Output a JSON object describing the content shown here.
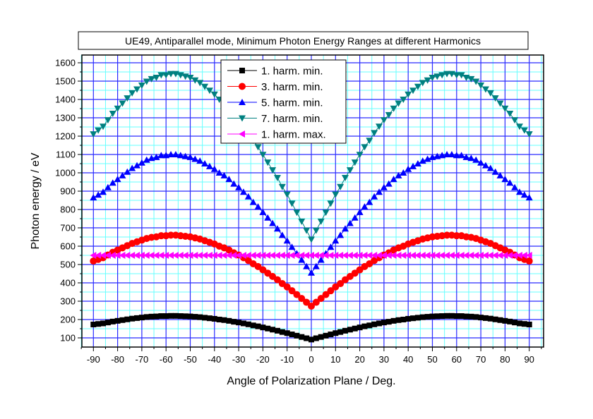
{
  "chart_data": {
    "type": "line",
    "title": "UE49, Antiparallel mode, Minimum Photon Energy Ranges at different Harmonics",
    "xlabel": "Angle of Polarization Plane / Deg.",
    "ylabel": "Photon energy / eV",
    "xlim": [
      -95,
      95
    ],
    "ylim": [
      50,
      1650
    ],
    "xticks": [
      -90,
      -80,
      -70,
      -60,
      -50,
      -40,
      -30,
      -20,
      -10,
      0,
      10,
      20,
      30,
      40,
      50,
      60,
      70,
      80,
      90
    ],
    "yticks": [
      100,
      200,
      300,
      400,
      500,
      600,
      700,
      800,
      900,
      1000,
      1100,
      1200,
      1300,
      1400,
      1500,
      1600
    ],
    "grid": true,
    "legend_position": "top-center",
    "x": [
      -90,
      -88,
      -86,
      -84,
      -82,
      -80,
      -78,
      -76,
      -74,
      -72,
      -70,
      -68,
      -66,
      -64,
      -62,
      -60,
      -58,
      -56,
      -54,
      -52,
      -50,
      -48,
      -46,
      -44,
      -42,
      -40,
      -38,
      -36,
      -34,
      -32,
      -30,
      -28,
      -26,
      -24,
      -22,
      -20,
      -18,
      -16,
      -14,
      -12,
      -10,
      -8,
      -6,
      -4,
      -2,
      0,
      2,
      4,
      6,
      8,
      10,
      12,
      14,
      16,
      18,
      20,
      22,
      24,
      26,
      28,
      30,
      32,
      34,
      36,
      38,
      40,
      42,
      44,
      46,
      48,
      50,
      52,
      54,
      56,
      58,
      60,
      62,
      64,
      66,
      68,
      70,
      72,
      74,
      76,
      78,
      80,
      82,
      84,
      86,
      88,
      90
    ],
    "series": [
      {
        "name": "1. harm. min.",
        "color": "#000000",
        "marker": "square",
        "values": [
          173,
          176,
          179,
          184,
          189,
          193,
          197,
          201,
          205,
          208,
          211,
          214,
          216,
          217,
          219,
          219,
          220,
          220,
          219,
          218,
          217,
          215,
          213,
          210,
          207,
          204,
          200,
          197,
          193,
          188,
          184,
          179,
          174,
          168,
          163,
          157,
          151,
          145,
          139,
          132,
          126,
          119,
          112,
          105,
          98,
          91,
          98,
          105,
          112,
          119,
          126,
          132,
          139,
          145,
          151,
          157,
          163,
          168,
          174,
          179,
          184,
          188,
          193,
          197,
          200,
          204,
          207,
          210,
          213,
          215,
          217,
          218,
          219,
          220,
          220,
          219,
          219,
          217,
          216,
          214,
          211,
          208,
          205,
          201,
          197,
          193,
          189,
          184,
          179,
          176,
          173
        ]
      },
      {
        "name": "3. harm. min.",
        "color": "#ff0000",
        "marker": "circle",
        "values": [
          519,
          528,
          537,
          552,
          567,
          579,
          591,
          603,
          615,
          624,
          633,
          642,
          648,
          651,
          657,
          657,
          660,
          660,
          657,
          654,
          651,
          645,
          639,
          630,
          621,
          612,
          600,
          591,
          579,
          564,
          552,
          537,
          522,
          504,
          489,
          471,
          453,
          435,
          417,
          396,
          378,
          357,
          336,
          315,
          294,
          273,
          294,
          315,
          336,
          357,
          378,
          396,
          417,
          435,
          453,
          471,
          489,
          504,
          522,
          537,
          552,
          564,
          579,
          591,
          600,
          612,
          621,
          630,
          639,
          645,
          651,
          654,
          657,
          660,
          660,
          657,
          657,
          651,
          648,
          642,
          633,
          624,
          615,
          603,
          591,
          579,
          567,
          552,
          537,
          528,
          519
        ]
      },
      {
        "name": "5. harm. min.",
        "color": "#0000ff",
        "marker": "triangle-up",
        "values": [
          865,
          880,
          895,
          920,
          945,
          965,
          985,
          1005,
          1025,
          1040,
          1055,
          1070,
          1080,
          1085,
          1095,
          1095,
          1100,
          1100,
          1095,
          1090,
          1085,
          1075,
          1065,
          1050,
          1035,
          1020,
          1000,
          985,
          965,
          940,
          920,
          895,
          870,
          840,
          815,
          785,
          755,
          725,
          695,
          660,
          630,
          595,
          560,
          525,
          490,
          455,
          490,
          525,
          560,
          595,
          630,
          660,
          695,
          725,
          755,
          785,
          815,
          840,
          870,
          895,
          920,
          940,
          965,
          985,
          1000,
          1020,
          1035,
          1050,
          1065,
          1075,
          1085,
          1090,
          1095,
          1100,
          1100,
          1095,
          1095,
          1085,
          1080,
          1070,
          1055,
          1040,
          1025,
          1005,
          985,
          965,
          945,
          920,
          895,
          880,
          865
        ]
      },
      {
        "name": "7. harm. min.",
        "color": "#008080",
        "marker": "triangle-down",
        "values": [
          1211,
          1232,
          1253,
          1288,
          1323,
          1351,
          1379,
          1407,
          1435,
          1456,
          1477,
          1498,
          1512,
          1519,
          1533,
          1533,
          1540,
          1540,
          1533,
          1526,
          1519,
          1505,
          1491,
          1470,
          1449,
          1428,
          1400,
          1379,
          1351,
          1316,
          1288,
          1253,
          1218,
          1176,
          1141,
          1099,
          1057,
          1015,
          973,
          924,
          882,
          833,
          784,
          735,
          686,
          637,
          686,
          735,
          784,
          833,
          882,
          924,
          973,
          1015,
          1057,
          1099,
          1141,
          1176,
          1218,
          1253,
          1288,
          1316,
          1351,
          1379,
          1400,
          1428,
          1449,
          1470,
          1491,
          1505,
          1519,
          1526,
          1533,
          1540,
          1540,
          1533,
          1533,
          1519,
          1512,
          1498,
          1477,
          1456,
          1435,
          1407,
          1379,
          1351,
          1323,
          1288,
          1253,
          1232,
          1211
        ]
      },
      {
        "name": "1. harm. max.",
        "color": "#ff00ff",
        "marker": "triangle-left",
        "values": [
          550,
          550,
          550,
          550,
          550,
          550,
          550,
          550,
          550,
          550,
          550,
          550,
          550,
          550,
          550,
          550,
          550,
          550,
          550,
          550,
          550,
          550,
          550,
          550,
          550,
          550,
          550,
          550,
          550,
          550,
          550,
          550,
          550,
          550,
          550,
          550,
          550,
          550,
          550,
          550,
          550,
          550,
          550,
          550,
          550,
          550,
          550,
          550,
          550,
          550,
          550,
          550,
          550,
          550,
          550,
          550,
          550,
          550,
          550,
          550,
          550,
          550,
          550,
          550,
          550,
          550,
          550,
          550,
          550,
          550,
          550,
          550,
          550,
          550,
          550,
          550,
          550,
          550,
          550,
          550,
          550,
          550,
          550,
          550,
          550,
          550,
          550,
          550,
          550,
          550,
          550
        ]
      }
    ]
  }
}
